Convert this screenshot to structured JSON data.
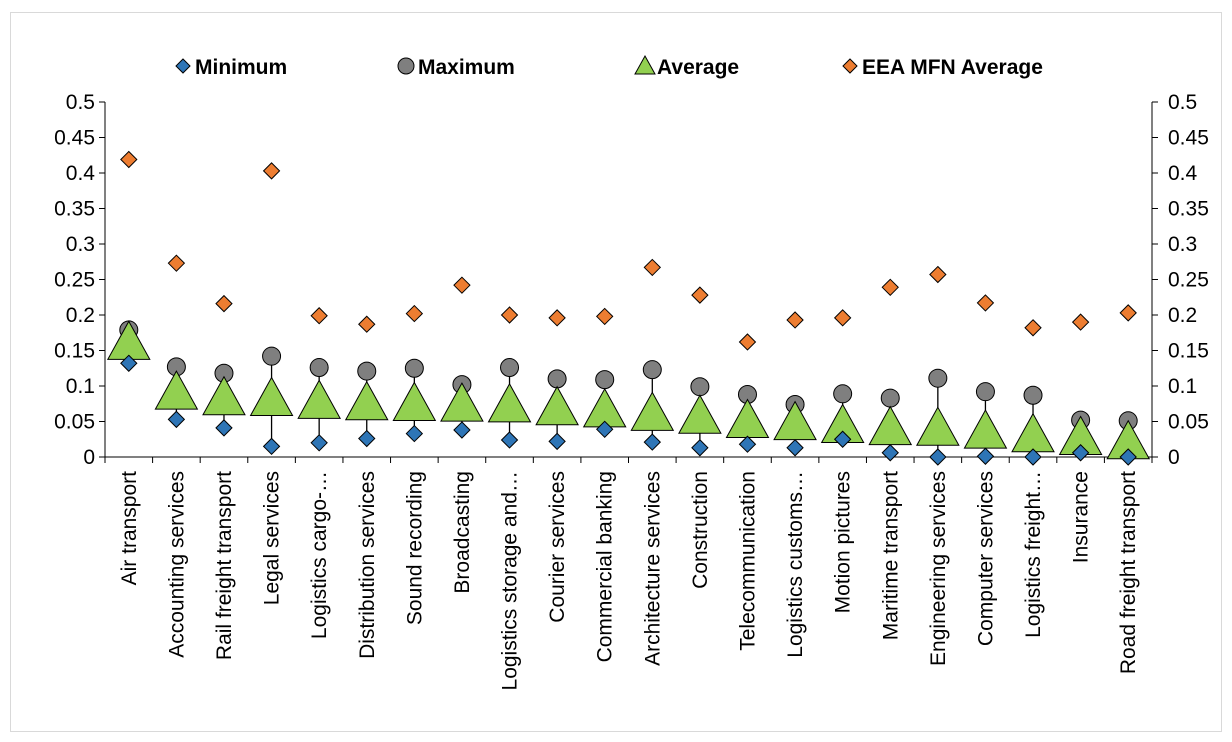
{
  "chart_data": {
    "type": "scatter",
    "title": "",
    "xlabel": "",
    "ylabel": "",
    "ylim": [
      0,
      0.5
    ],
    "yticks": [
      "0",
      "0.05",
      "0.1",
      "0.15",
      "0.2",
      "0.25",
      "0.3",
      "0.35",
      "0.4",
      "0.45",
      "0.5"
    ],
    "secondary_axis": true,
    "grid": false,
    "legend_position": "top",
    "categories": [
      "Air transport",
      "Accounting services",
      "Rail freight transport",
      "Legal services",
      "Logistics cargo-…",
      "Distribution services",
      "Sound recording",
      "Broadcasting",
      "Logistics storage and…",
      "Courier services",
      "Commercial banking",
      "Architecture services",
      "Construction",
      "Telecommunication",
      "Logistics customs…",
      "Motion pictures",
      "Maritime transport",
      "Engineering services",
      "Computer services",
      "Logistics freight…",
      "Insurance",
      "Road freight transport"
    ],
    "series": [
      {
        "name": "Minimum",
        "marker": "diamond",
        "color": "#2e75b6",
        "values": [
          0.132,
          0.053,
          0.041,
          0.015,
          0.02,
          0.026,
          0.033,
          0.038,
          0.024,
          0.022,
          0.039,
          0.021,
          0.013,
          0.018,
          0.013,
          0.025,
          0.006,
          0.0,
          0.001,
          0.0,
          0.006,
          0.0
        ]
      },
      {
        "name": "Maximum",
        "marker": "circle",
        "color": "#7f7f7f",
        "values": [
          0.179,
          0.127,
          0.118,
          0.142,
          0.126,
          0.121,
          0.125,
          0.102,
          0.126,
          0.11,
          0.109,
          0.123,
          0.099,
          0.088,
          0.074,
          0.089,
          0.083,
          0.111,
          0.092,
          0.087,
          0.052,
          0.051
        ]
      },
      {
        "name": "Average",
        "marker": "triangle",
        "color": "#92d050",
        "values": [
          0.16,
          0.09,
          0.082,
          0.081,
          0.077,
          0.075,
          0.074,
          0.073,
          0.072,
          0.068,
          0.065,
          0.06,
          0.056,
          0.05,
          0.047,
          0.043,
          0.04,
          0.039,
          0.035,
          0.03,
          0.026,
          0.02
        ]
      },
      {
        "name": "EEA MFN Average",
        "marker": "diamond",
        "color": "#ed7d31",
        "values": [
          0.419,
          0.273,
          0.216,
          0.403,
          0.199,
          0.187,
          0.202,
          0.242,
          0.2,
          0.196,
          0.198,
          0.267,
          0.228,
          0.162,
          0.193,
          0.196,
          0.239,
          0.257,
          0.217,
          0.182,
          0.19,
          0.203
        ]
      }
    ]
  }
}
